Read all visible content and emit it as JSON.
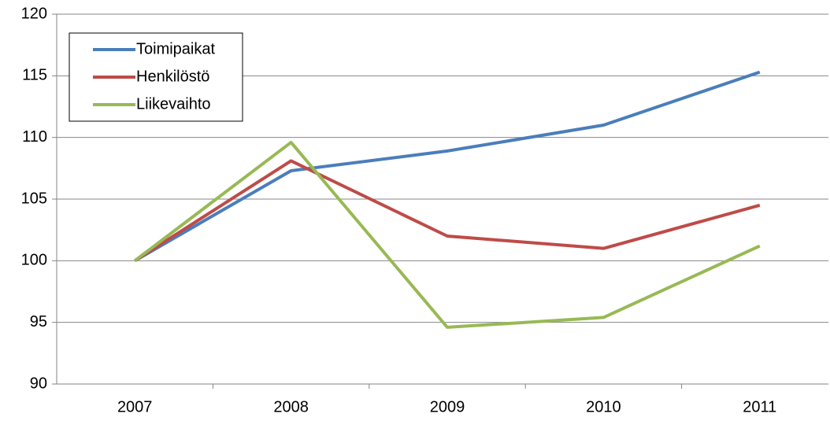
{
  "chart_data": {
    "type": "line",
    "categories": [
      "2007",
      "2008",
      "2009",
      "2010",
      "2011"
    ],
    "series": [
      {
        "name": "Toimipaikat",
        "color": "#4a7ebb",
        "values": [
          100,
          107.3,
          108.9,
          111.0,
          115.3
        ]
      },
      {
        "name": "Henkilöstö",
        "color": "#be4b48",
        "values": [
          100,
          108.1,
          102.0,
          101.0,
          104.5
        ]
      },
      {
        "name": "Liikevaihto",
        "color": "#98b954",
        "values": [
          100,
          109.6,
          94.6,
          95.4,
          101.2
        ]
      }
    ],
    "ylim": [
      90,
      120
    ],
    "yticks": [
      90,
      95,
      100,
      105,
      110,
      115,
      120
    ],
    "grid": true,
    "legend": "top-left"
  }
}
